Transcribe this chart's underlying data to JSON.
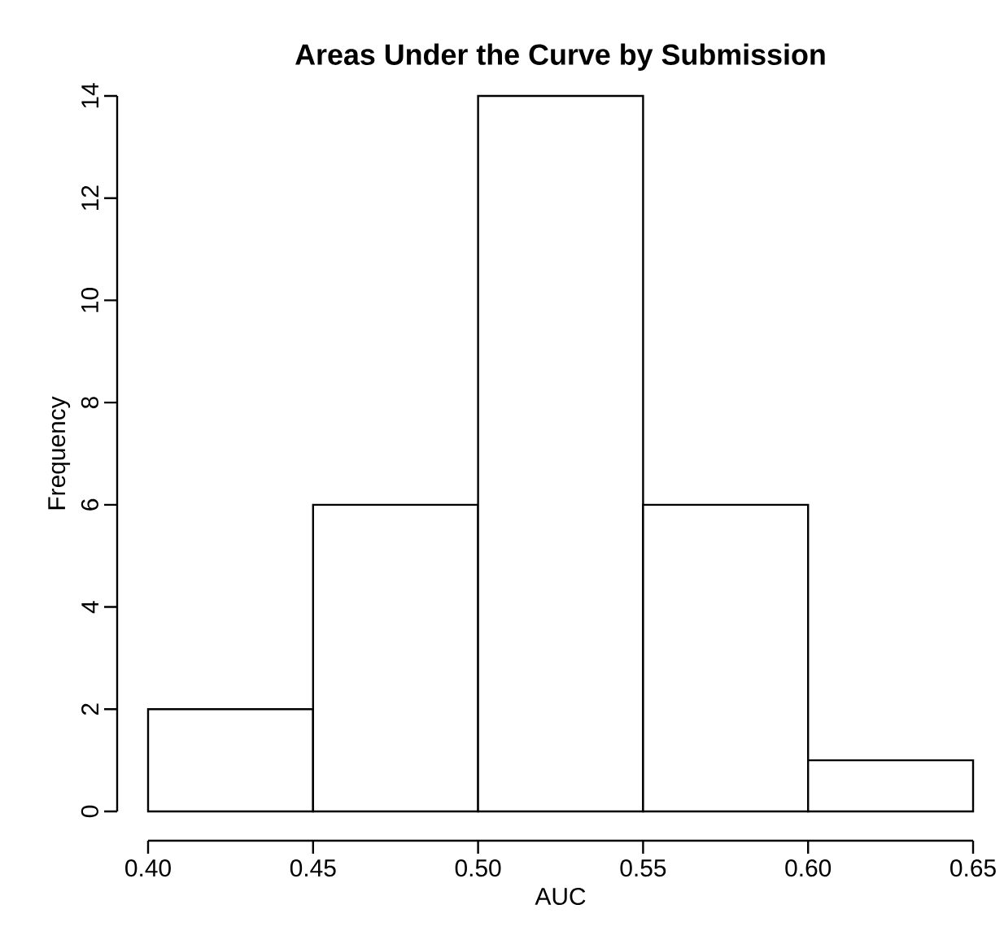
{
  "chart_data": {
    "type": "histogram",
    "title": "Areas Under the Curve by Submission",
    "xlabel": "AUC",
    "ylabel": "Frequency",
    "bins": [
      0.4,
      0.45,
      0.5,
      0.55,
      0.6,
      0.65
    ],
    "values": [
      2,
      6,
      14,
      6,
      1
    ],
    "color": "#ffffff",
    "xlim": [
      0.4,
      0.65
    ],
    "ylim": [
      0,
      14
    ],
    "xticks": [
      {
        "value": 0.4,
        "label": "0.40"
      },
      {
        "value": 0.45,
        "label": "0.45"
      },
      {
        "value": 0.5,
        "label": "0.50"
      },
      {
        "value": 0.55,
        "label": "0.55"
      },
      {
        "value": 0.6,
        "label": "0.60"
      },
      {
        "value": 0.65,
        "label": "0.65"
      }
    ],
    "yticks": [
      0,
      2,
      4,
      6,
      8,
      10,
      12,
      14
    ]
  }
}
